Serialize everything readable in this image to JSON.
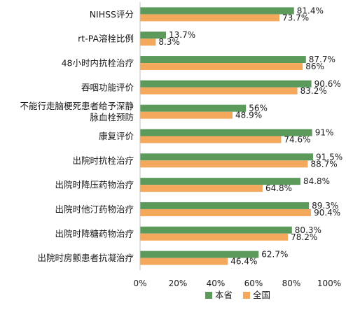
{
  "chart_data": {
    "type": "bar",
    "orientation": "horizontal",
    "categories": [
      "NIHSS评分",
      "rt-PA溶栓比例",
      "48小时内抗栓治疗",
      "吞咽功能评价",
      [
        "不能行走脑梗死患者给予深静",
        "脉血栓预防"
      ],
      "康复评价",
      "出院时抗栓治疗",
      "出院时降压药物治疗",
      "出院时他汀药物治疗",
      "出院时降糖药物治疗",
      "出院时房颤患者抗凝治疗"
    ],
    "series": [
      {
        "name": "本省",
        "color": "#5b9a5b",
        "values": [
          81.4,
          13.7,
          87.7,
          90.6,
          56,
          91,
          91.5,
          84.8,
          89.3,
          80.3,
          62.7
        ],
        "labels": [
          "81.4%",
          "13.7%",
          "87.7%",
          "90.6%",
          "56%",
          "91%",
          "91.5%",
          "84.8%",
          "89.3%",
          "80.3%",
          "62.7%"
        ]
      },
      {
        "name": "全国",
        "color": "#f4a85c",
        "values": [
          73.7,
          8.3,
          86,
          83.2,
          48.9,
          74.6,
          88.7,
          64.8,
          90.4,
          78.2,
          46.4
        ],
        "labels": [
          "73.7%",
          "8.3%",
          "86%",
          "83.2%",
          "48.9%",
          "74.6%",
          "88.7%",
          "64.8%",
          "90.4%",
          "78.2%",
          "46.4%"
        ]
      }
    ],
    "xlim": [
      0,
      100
    ],
    "xticks": [
      "0%",
      "20%",
      "40%",
      "60%",
      "80%",
      "100%"
    ],
    "grid": false,
    "legend": "bottom"
  }
}
